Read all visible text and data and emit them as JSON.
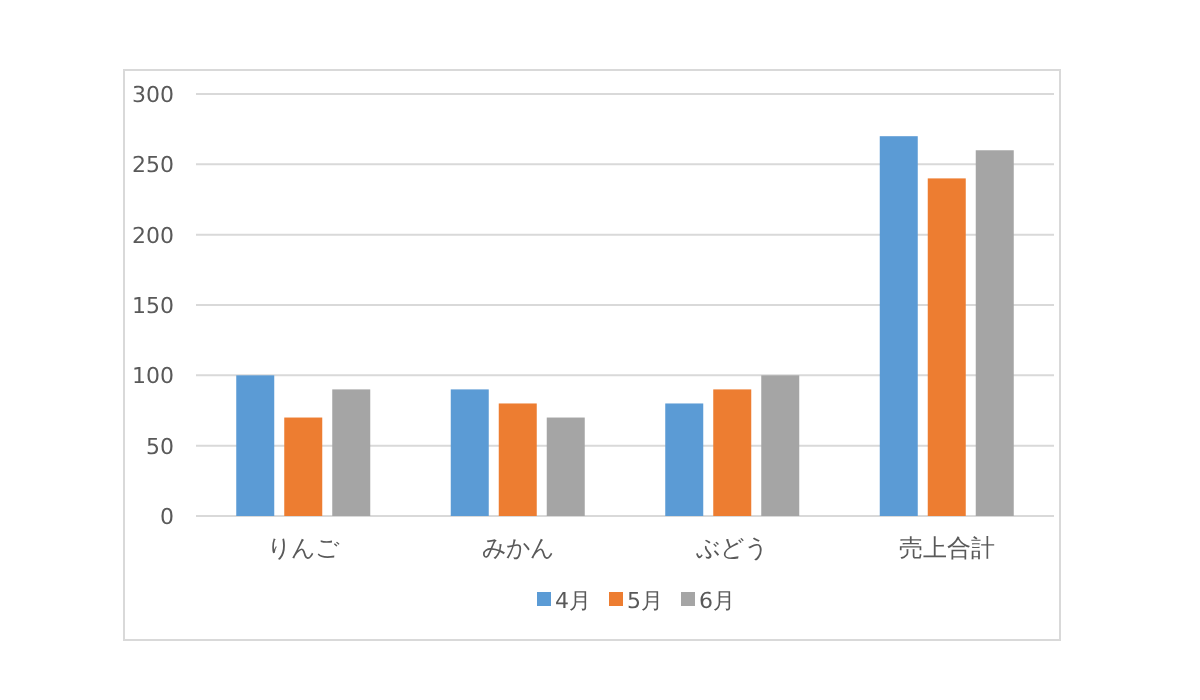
{
  "chart_data": {
    "type": "bar",
    "categories": [
      "りんご",
      "みかん",
      "ぶどう",
      "売上合計"
    ],
    "series": [
      {
        "name": "4月",
        "color": "#5b9bd5",
        "values": [
          100,
          90,
          80,
          270
        ]
      },
      {
        "name": "5月",
        "color": "#ed7d31",
        "values": [
          70,
          80,
          90,
          240
        ]
      },
      {
        "name": "6月",
        "color": "#a5a5a5",
        "values": [
          90,
          70,
          100,
          260
        ]
      }
    ],
    "ylim": [
      0,
      300
    ],
    "yticks": [
      0,
      50,
      100,
      150,
      200,
      250,
      300
    ],
    "grid": "y",
    "legend": "bottom"
  }
}
